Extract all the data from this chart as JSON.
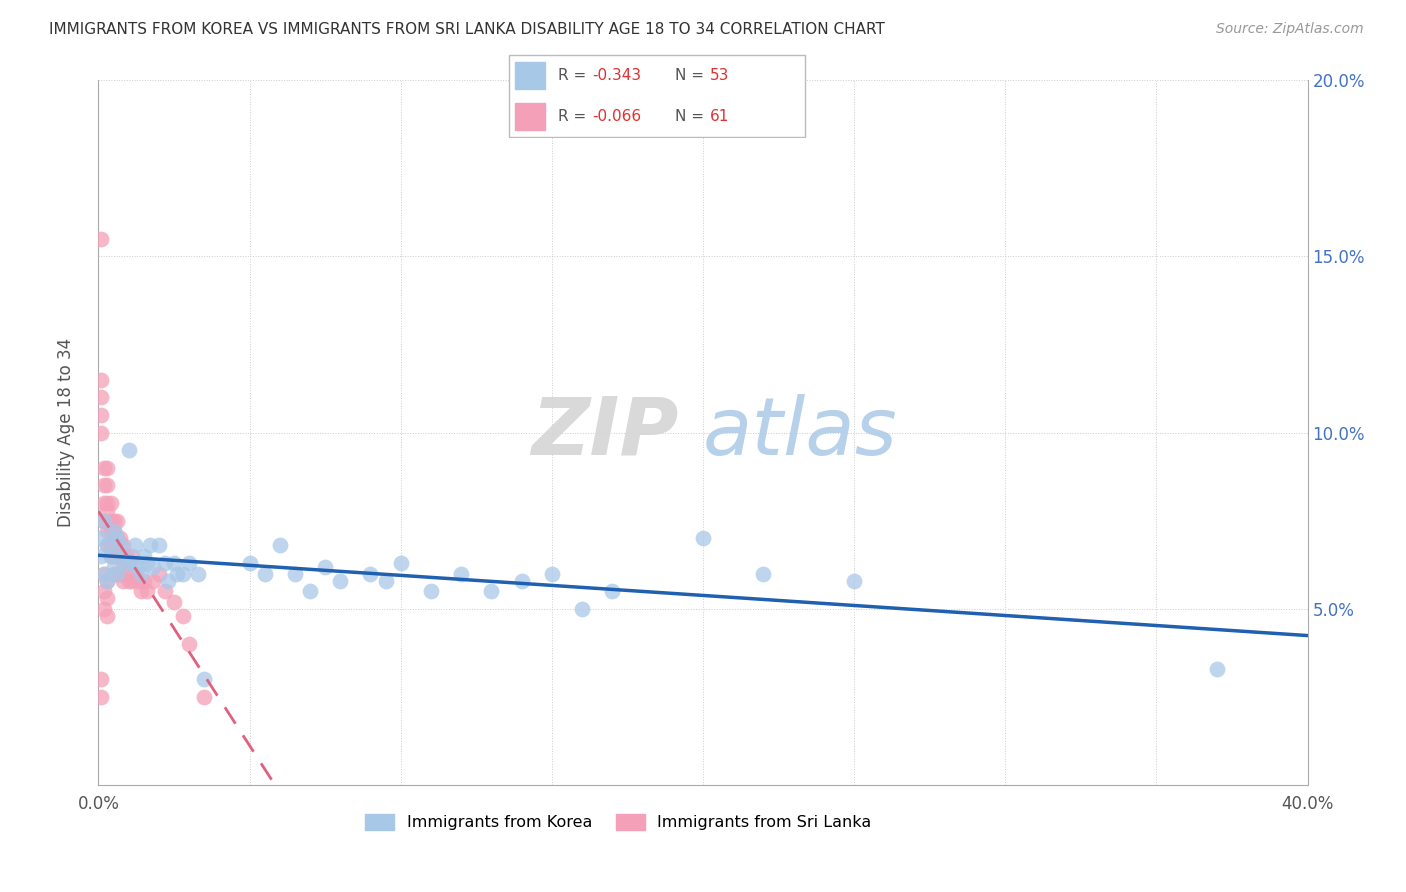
{
  "title": "IMMIGRANTS FROM KOREA VS IMMIGRANTS FROM SRI LANKA DISABILITY AGE 18 TO 34 CORRELATION CHART",
  "source": "Source: ZipAtlas.com",
  "ylabel": "Disability Age 18 to 34",
  "xlim": [
    0.0,
    0.4
  ],
  "ylim": [
    0.0,
    0.2
  ],
  "xticks": [
    0.0,
    0.05,
    0.1,
    0.15,
    0.2,
    0.25,
    0.3,
    0.35,
    0.4
  ],
  "yticks": [
    0.0,
    0.05,
    0.1,
    0.15,
    0.2
  ],
  "korea_color": "#a8c8e8",
  "srilanka_color": "#f4a0b8",
  "korea_line_color": "#2060b0",
  "srilanka_line_color": "#e06080",
  "korea_R": -0.343,
  "korea_N": 53,
  "srilanka_R": -0.066,
  "srilanka_N": 61,
  "watermark_zip": "ZIP",
  "watermark_atlas": "atlas",
  "korea_scatter_x": [
    0.001,
    0.001,
    0.002,
    0.002,
    0.003,
    0.003,
    0.004,
    0.005,
    0.005,
    0.006,
    0.006,
    0.007,
    0.008,
    0.009,
    0.01,
    0.011,
    0.012,
    0.013,
    0.014,
    0.015,
    0.016,
    0.017,
    0.018,
    0.02,
    0.022,
    0.023,
    0.025,
    0.026,
    0.028,
    0.03,
    0.033,
    0.035,
    0.05,
    0.055,
    0.06,
    0.065,
    0.07,
    0.075,
    0.08,
    0.09,
    0.095,
    0.1,
    0.11,
    0.12,
    0.13,
    0.14,
    0.15,
    0.16,
    0.17,
    0.2,
    0.22,
    0.25,
    0.37
  ],
  "korea_scatter_y": [
    0.07,
    0.065,
    0.075,
    0.06,
    0.068,
    0.058,
    0.065,
    0.072,
    0.062,
    0.07,
    0.06,
    0.068,
    0.065,
    0.063,
    0.095,
    0.063,
    0.068,
    0.062,
    0.06,
    0.065,
    0.063,
    0.068,
    0.062,
    0.068,
    0.063,
    0.058,
    0.063,
    0.06,
    0.06,
    0.063,
    0.06,
    0.03,
    0.063,
    0.06,
    0.068,
    0.06,
    0.055,
    0.062,
    0.058,
    0.06,
    0.058,
    0.063,
    0.055,
    0.06,
    0.055,
    0.058,
    0.06,
    0.05,
    0.055,
    0.07,
    0.06,
    0.058,
    0.033
  ],
  "srilanka_scatter_x": [
    0.001,
    0.001,
    0.001,
    0.001,
    0.001,
    0.002,
    0.002,
    0.002,
    0.002,
    0.003,
    0.003,
    0.003,
    0.003,
    0.003,
    0.003,
    0.004,
    0.004,
    0.004,
    0.004,
    0.004,
    0.005,
    0.005,
    0.005,
    0.005,
    0.005,
    0.006,
    0.006,
    0.006,
    0.006,
    0.007,
    0.007,
    0.007,
    0.008,
    0.008,
    0.008,
    0.009,
    0.009,
    0.01,
    0.01,
    0.011,
    0.011,
    0.012,
    0.013,
    0.014,
    0.015,
    0.016,
    0.018,
    0.02,
    0.022,
    0.025,
    0.028,
    0.03,
    0.035,
    0.001,
    0.001,
    0.002,
    0.002,
    0.002,
    0.003,
    0.003,
    0.003
  ],
  "srilanka_scatter_y": [
    0.155,
    0.115,
    0.11,
    0.105,
    0.1,
    0.09,
    0.085,
    0.08,
    0.075,
    0.09,
    0.085,
    0.08,
    0.078,
    0.072,
    0.068,
    0.08,
    0.075,
    0.072,
    0.068,
    0.065,
    0.075,
    0.072,
    0.068,
    0.065,
    0.06,
    0.075,
    0.07,
    0.065,
    0.06,
    0.07,
    0.065,
    0.06,
    0.068,
    0.063,
    0.058,
    0.065,
    0.06,
    0.063,
    0.058,
    0.065,
    0.058,
    0.06,
    0.058,
    0.055,
    0.058,
    0.055,
    0.058,
    0.06,
    0.055,
    0.052,
    0.048,
    0.04,
    0.025,
    0.03,
    0.025,
    0.06,
    0.055,
    0.05,
    0.058,
    0.053,
    0.048
  ]
}
